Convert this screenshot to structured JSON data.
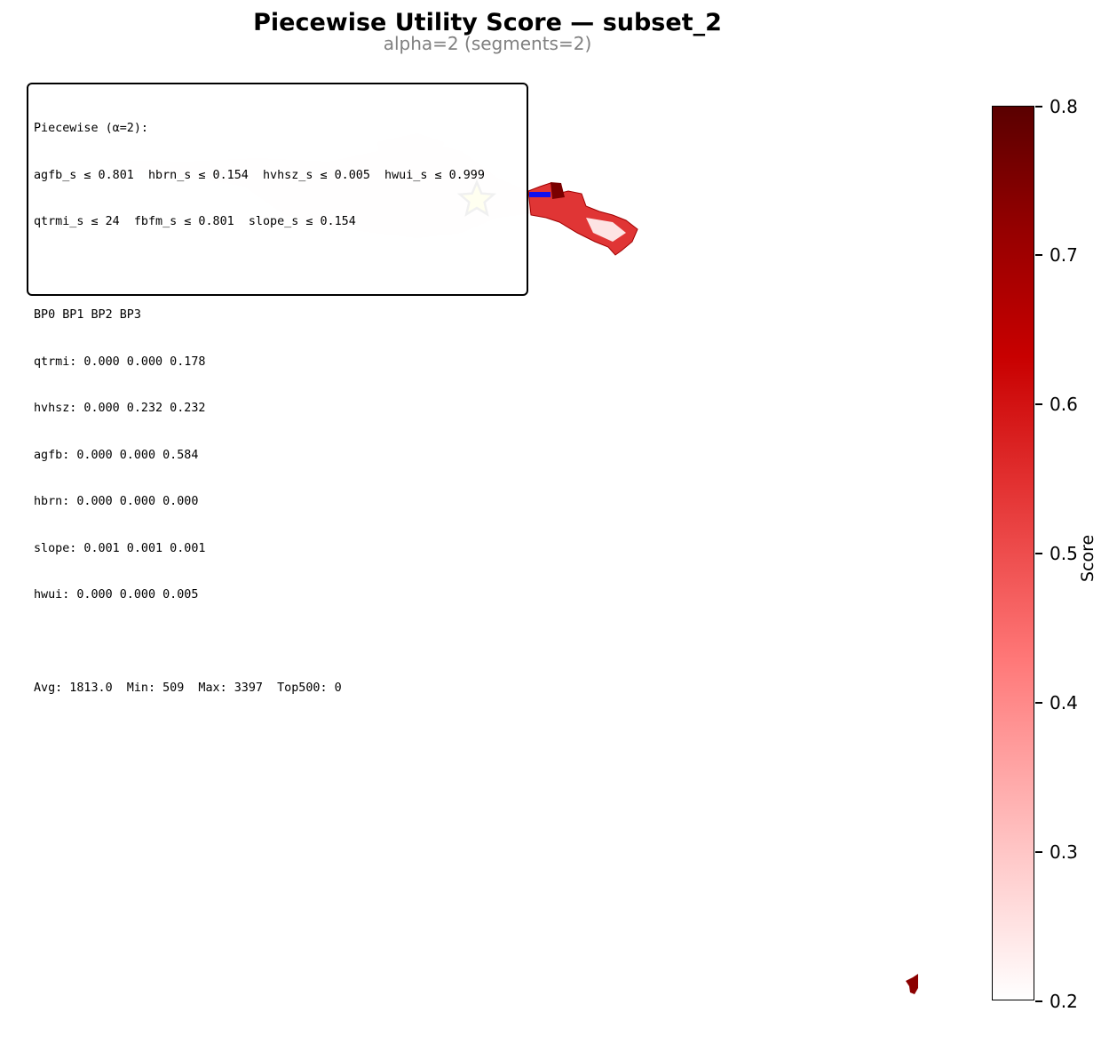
{
  "title": "Piecewise Utility Score — subset_2",
  "subtitle": "alpha=2 (segments=2)",
  "infobox": {
    "lines": [
      "Piecewise (α=2):",
      "agfb_s ≤ 0.801  hbrn_s ≤ 0.154  hvhsz_s ≤ 0.005  hwui_s ≤ 0.999",
      "qtrmi_s ≤ 24  fbfm_s ≤ 0.801  slope_s ≤ 0.154",
      "",
      "BP0 BP1 BP2 BP3",
      "qtrmi: 0.000 0.000 0.178",
      "hvhsz: 0.000 0.232 0.232",
      "agfb: 0.000 0.000 0.584",
      "hbrn: 0.000 0.000 0.000",
      "slope: 0.001 0.001 0.001",
      "hwui: 0.000 0.000 0.005",
      "",
      "Avg: 1813.0  Min: 509  Max: 3397  Top500: 0"
    ]
  },
  "colorbar": {
    "label": "Score",
    "min": 0.2,
    "max": 0.8,
    "ticks": [
      "0.2",
      "0.3",
      "0.4",
      "0.5",
      "0.6",
      "0.7",
      "0.8"
    ],
    "colors": {
      "low": "#ffffff",
      "mid": "#c80000",
      "high": "#5a0000"
    }
  },
  "map": {
    "marker_icon": "star-icon",
    "marker_color": "#ffff00",
    "highlight_color": "#0000ff"
  }
}
